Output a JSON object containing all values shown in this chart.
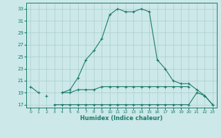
{
  "xlabel": "Humidex (Indice chaleur)",
  "x_values": [
    0,
    1,
    2,
    3,
    4,
    5,
    6,
    7,
    8,
    9,
    10,
    11,
    12,
    13,
    14,
    15,
    16,
    17,
    18,
    19,
    20,
    21,
    22,
    23
  ],
  "line_max": [
    20,
    19,
    null,
    null,
    19,
    19.5,
    21.5,
    24.5,
    26,
    28,
    32,
    33,
    32.5,
    32.5,
    33,
    32.5,
    24.5,
    23,
    21,
    20.5,
    20.5,
    19.5,
    18.5,
    17
  ],
  "line_avg": [
    null,
    null,
    18.5,
    null,
    19,
    19,
    19.5,
    19.5,
    19.5,
    20,
    20,
    20,
    20,
    20,
    20,
    20,
    20,
    20,
    20,
    20,
    20,
    null,
    null,
    null
  ],
  "line_min": [
    null,
    null,
    null,
    17,
    17,
    17,
    17,
    17,
    17,
    17,
    17,
    17,
    17,
    17,
    17,
    17,
    17,
    17,
    17,
    17,
    17,
    19,
    18.5,
    17
  ],
  "ylim": [
    16.5,
    34
  ],
  "xlim": [
    -0.5,
    23.5
  ],
  "yticks": [
    17,
    19,
    21,
    23,
    25,
    27,
    29,
    31,
    33
  ],
  "xticks": [
    0,
    1,
    2,
    3,
    4,
    5,
    6,
    7,
    8,
    9,
    10,
    11,
    12,
    13,
    14,
    15,
    16,
    17,
    18,
    19,
    20,
    21,
    22,
    23
  ],
  "line_color": "#1a7a6a",
  "bg_color": "#cce8e8",
  "grid_color": "#aacece",
  "marker": "+"
}
